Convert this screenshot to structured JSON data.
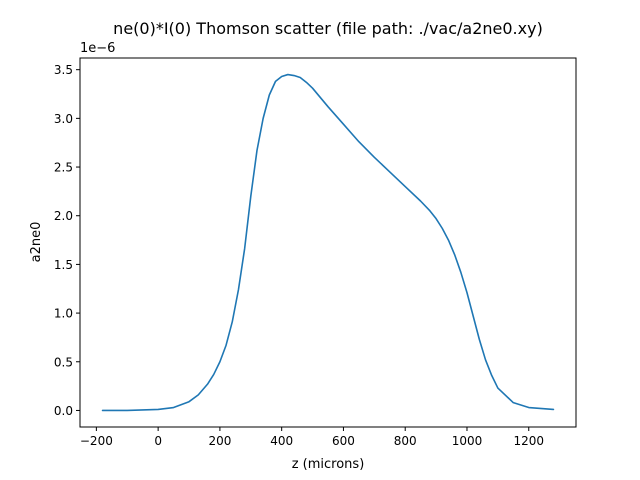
{
  "chart_data": {
    "type": "line",
    "title": "ne(0)*I(0) Thomson scatter  (file path: ./vac/a2ne0.xy)",
    "xlabel": "z (microns)",
    "ylabel": "a2ne0",
    "y_offset_label": "1e−6",
    "xlim": [
      -253,
      1353
    ],
    "ylim": [
      -0.17,
      3.62
    ],
    "x_ticks": [
      -200,
      0,
      200,
      400,
      600,
      800,
      1000,
      1200
    ],
    "x_tick_labels": [
      "−200",
      "0",
      "200",
      "400",
      "600",
      "800",
      "1000",
      "1200"
    ],
    "y_ticks": [
      0.0,
      0.5,
      1.0,
      1.5,
      2.0,
      2.5,
      3.0,
      3.5
    ],
    "y_tick_labels": [
      "0.0",
      "0.5",
      "1.0",
      "1.5",
      "2.0",
      "2.5",
      "3.0",
      "3.5"
    ],
    "grid": false,
    "line_color": "#1f77b4",
    "series": [
      {
        "x": [
          -180,
          -100,
          0,
          50,
          100,
          130,
          160,
          180,
          200,
          220,
          240,
          260,
          280,
          300,
          320,
          340,
          360,
          380,
          400,
          420,
          440,
          460,
          480,
          500,
          550,
          600,
          650,
          700,
          750,
          800,
          850,
          880,
          900,
          920,
          940,
          960,
          980,
          1000,
          1020,
          1040,
          1060,
          1080,
          1100,
          1150,
          1200,
          1280
        ],
        "y": [
          0.0,
          0.0,
          0.01,
          0.03,
          0.09,
          0.16,
          0.27,
          0.37,
          0.5,
          0.67,
          0.91,
          1.24,
          1.66,
          2.2,
          2.67,
          3.0,
          3.24,
          3.38,
          3.43,
          3.45,
          3.44,
          3.42,
          3.37,
          3.31,
          3.12,
          2.94,
          2.76,
          2.6,
          2.45,
          2.3,
          2.15,
          2.05,
          1.97,
          1.87,
          1.75,
          1.6,
          1.42,
          1.21,
          0.97,
          0.73,
          0.52,
          0.36,
          0.23,
          0.08,
          0.03,
          0.01
        ]
      }
    ]
  }
}
